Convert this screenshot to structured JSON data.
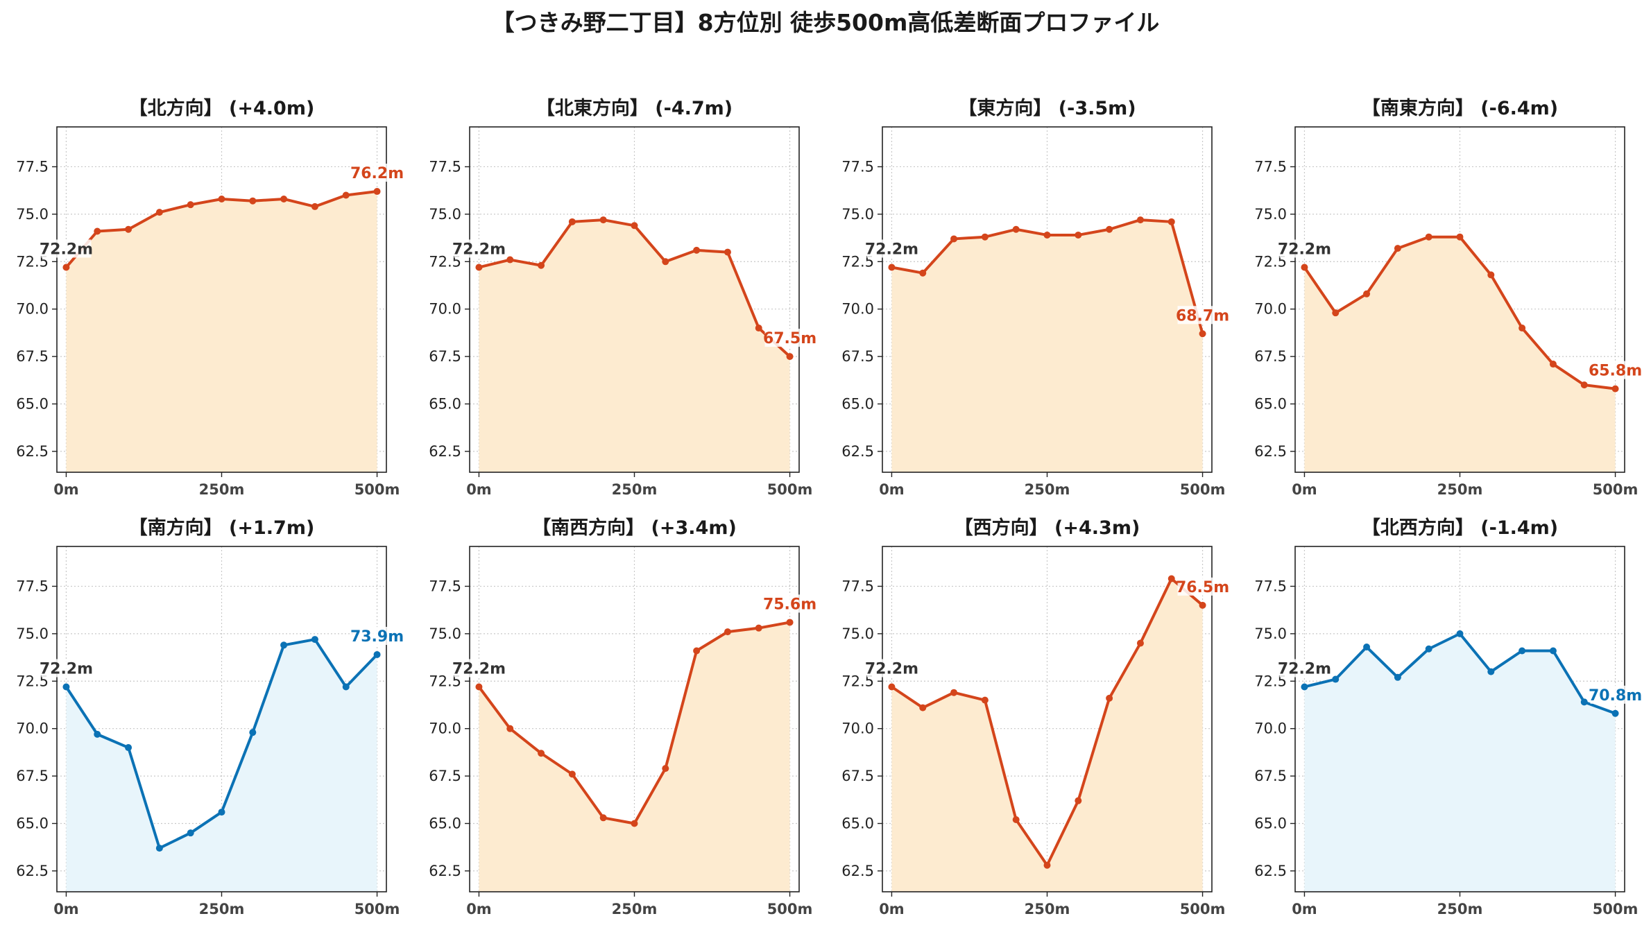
{
  "title": "【つきみ野二丁目】8方位別 徒歩500m高低差断面プロファイル",
  "colors": {
    "up_line": "#d4451b",
    "up_fill": "#fdebd0",
    "down_line": "#0b72b5",
    "down_fill": "#e8f5fb",
    "start_label": "#333333",
    "grid": "#c8c8c8",
    "axis": "#222222"
  },
  "chart_data": [
    {
      "type": "area",
      "title": "【北方向】 (+4.0m)",
      "style": "up",
      "x": [
        0,
        50,
        100,
        150,
        200,
        250,
        300,
        350,
        400,
        450,
        500
      ],
      "y": [
        72.2,
        74.1,
        74.2,
        75.1,
        75.5,
        75.8,
        75.7,
        75.8,
        75.4,
        76.0,
        76.2
      ],
      "start_label": "72.2m",
      "end_label": "76.2m",
      "xticks": [
        {
          "v": 0,
          "label": "0m"
        },
        {
          "v": 250,
          "label": "250m"
        },
        {
          "v": 500,
          "label": "500m"
        }
      ],
      "yticks": [
        62.5,
        65.0,
        67.5,
        70.0,
        72.5,
        75.0,
        77.5
      ],
      "ylim": [
        61.4,
        79.6
      ],
      "xlim": [
        -15,
        515
      ],
      "grid": true
    },
    {
      "type": "area",
      "title": "【北東方向】 (-4.7m)",
      "style": "up",
      "x": [
        0,
        50,
        100,
        150,
        200,
        250,
        300,
        350,
        400,
        450,
        500
      ],
      "y": [
        72.2,
        72.6,
        72.3,
        74.6,
        74.7,
        74.4,
        72.5,
        73.1,
        73.0,
        69.0,
        67.5
      ],
      "start_label": "72.2m",
      "end_label": "67.5m",
      "xticks": [
        {
          "v": 0,
          "label": "0m"
        },
        {
          "v": 250,
          "label": "250m"
        },
        {
          "v": 500,
          "label": "500m"
        }
      ],
      "yticks": [
        62.5,
        65.0,
        67.5,
        70.0,
        72.5,
        75.0,
        77.5
      ],
      "ylim": [
        61.4,
        79.6
      ],
      "xlim": [
        -15,
        515
      ],
      "grid": true
    },
    {
      "type": "area",
      "title": "【東方向】 (-3.5m)",
      "style": "up",
      "x": [
        0,
        50,
        100,
        150,
        200,
        250,
        300,
        350,
        400,
        450,
        500
      ],
      "y": [
        72.2,
        71.9,
        73.7,
        73.8,
        74.2,
        73.9,
        73.9,
        74.2,
        74.7,
        74.6,
        68.7
      ],
      "start_label": "72.2m",
      "end_label": "68.7m",
      "xticks": [
        {
          "v": 0,
          "label": "0m"
        },
        {
          "v": 250,
          "label": "250m"
        },
        {
          "v": 500,
          "label": "500m"
        }
      ],
      "yticks": [
        62.5,
        65.0,
        67.5,
        70.0,
        72.5,
        75.0,
        77.5
      ],
      "ylim": [
        61.4,
        79.6
      ],
      "xlim": [
        -15,
        515
      ],
      "grid": true
    },
    {
      "type": "area",
      "title": "【南東方向】 (-6.4m)",
      "style": "up",
      "x": [
        0,
        50,
        100,
        150,
        200,
        250,
        300,
        350,
        400,
        450,
        500
      ],
      "y": [
        72.2,
        69.8,
        70.8,
        73.2,
        73.8,
        73.8,
        71.8,
        69.0,
        67.1,
        66.0,
        65.8
      ],
      "start_label": "72.2m",
      "end_label": "65.8m",
      "xticks": [
        {
          "v": 0,
          "label": "0m"
        },
        {
          "v": 250,
          "label": "250m"
        },
        {
          "v": 500,
          "label": "500m"
        }
      ],
      "yticks": [
        62.5,
        65.0,
        67.5,
        70.0,
        72.5,
        75.0,
        77.5
      ],
      "ylim": [
        61.4,
        79.6
      ],
      "xlim": [
        -15,
        515
      ],
      "grid": true
    },
    {
      "type": "area",
      "title": "【南方向】 (+1.7m)",
      "style": "down",
      "x": [
        0,
        50,
        100,
        150,
        200,
        250,
        300,
        350,
        400,
        450,
        500
      ],
      "y": [
        72.2,
        69.7,
        69.0,
        63.7,
        64.5,
        65.6,
        69.8,
        74.4,
        74.7,
        72.2,
        73.9
      ],
      "start_label": "72.2m",
      "end_label": "73.9m",
      "xticks": [
        {
          "v": 0,
          "label": "0m"
        },
        {
          "v": 250,
          "label": "250m"
        },
        {
          "v": 500,
          "label": "500m"
        }
      ],
      "yticks": [
        62.5,
        65.0,
        67.5,
        70.0,
        72.5,
        75.0,
        77.5
      ],
      "ylim": [
        61.4,
        79.6
      ],
      "xlim": [
        -15,
        515
      ],
      "grid": true
    },
    {
      "type": "area",
      "title": "【南西方向】 (+3.4m)",
      "style": "up",
      "x": [
        0,
        50,
        100,
        150,
        200,
        250,
        300,
        350,
        400,
        450,
        500
      ],
      "y": [
        72.2,
        70.0,
        68.7,
        67.6,
        65.3,
        65.0,
        67.9,
        74.1,
        75.1,
        75.3,
        75.6
      ],
      "start_label": "72.2m",
      "end_label": "75.6m",
      "xticks": [
        {
          "v": 0,
          "label": "0m"
        },
        {
          "v": 250,
          "label": "250m"
        },
        {
          "v": 500,
          "label": "500m"
        }
      ],
      "yticks": [
        62.5,
        65.0,
        67.5,
        70.0,
        72.5,
        75.0,
        77.5
      ],
      "ylim": [
        61.4,
        79.6
      ],
      "xlim": [
        -15,
        515
      ],
      "grid": true
    },
    {
      "type": "area",
      "title": "【西方向】 (+4.3m)",
      "style": "up",
      "x": [
        0,
        50,
        100,
        150,
        200,
        250,
        300,
        350,
        400,
        450,
        500
      ],
      "y": [
        72.2,
        71.1,
        71.9,
        71.5,
        65.2,
        62.8,
        66.2,
        71.6,
        74.5,
        77.9,
        76.5
      ],
      "start_label": "72.2m",
      "end_label": "76.5m",
      "xticks": [
        {
          "v": 0,
          "label": "0m"
        },
        {
          "v": 250,
          "label": "250m"
        },
        {
          "v": 500,
          "label": "500m"
        }
      ],
      "yticks": [
        62.5,
        65.0,
        67.5,
        70.0,
        72.5,
        75.0,
        77.5
      ],
      "ylim": [
        61.4,
        79.6
      ],
      "xlim": [
        -15,
        515
      ],
      "grid": true
    },
    {
      "type": "area",
      "title": "【北西方向】 (-1.4m)",
      "style": "down",
      "x": [
        0,
        50,
        100,
        150,
        200,
        250,
        300,
        350,
        400,
        450,
        500
      ],
      "y": [
        72.2,
        72.6,
        74.3,
        72.7,
        74.2,
        75.0,
        73.0,
        74.1,
        74.1,
        71.4,
        70.8
      ],
      "start_label": "72.2m",
      "end_label": "70.8m",
      "xticks": [
        {
          "v": 0,
          "label": "0m"
        },
        {
          "v": 250,
          "label": "250m"
        },
        {
          "v": 500,
          "label": "500m"
        }
      ],
      "yticks": [
        62.5,
        65.0,
        67.5,
        70.0,
        72.5,
        75.0,
        77.5
      ],
      "ylim": [
        61.4,
        79.6
      ],
      "xlim": [
        -15,
        515
      ],
      "grid": true
    }
  ]
}
